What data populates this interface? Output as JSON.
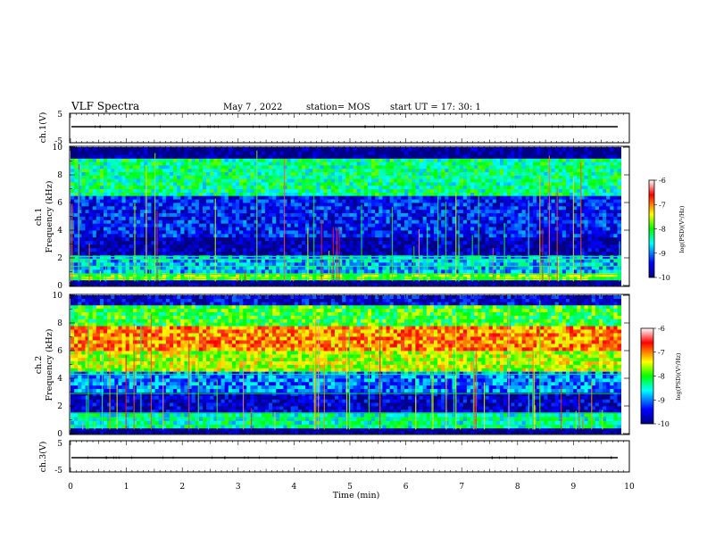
{
  "header": {
    "title": "VLF Spectra",
    "date": "May 7 , 2022",
    "station": "station= MOS",
    "start": "start  UT =   17: 30: 1"
  },
  "colors": {
    "colormap": [
      "#000080",
      "#0000ff",
      "#00ffff",
      "#00ff00",
      "#ffff00",
      "#ff0000",
      "#ffffff"
    ],
    "waveform_line": "#000000",
    "frame": "#000000"
  },
  "chart_data": [
    {
      "type": "line",
      "panel": "ch1-waveform",
      "ylabel": "ch.1(V)",
      "ylim": [
        -5,
        5
      ],
      "yticks": [
        "5",
        "-5"
      ],
      "xlim": [
        0,
        10
      ],
      "series": [
        {
          "values": [
            0,
            0
          ]
        }
      ]
    },
    {
      "type": "heatmap",
      "panel": "ch1-spectrogram",
      "ylabel": "ch.1\nFrequency (kHz)",
      "ylabel_line1": "ch.1",
      "ylabel_line2": "Frequency (kHz)",
      "xlim": [
        0,
        9.85
      ],
      "ylim": [
        0,
        10
      ],
      "yticks": [
        "0",
        "2",
        "4",
        "6",
        "8",
        "10"
      ],
      "colorbar": {
        "label": "log(PSD)(V²/Hz)",
        "ticks": [
          "-6",
          "-7",
          "-8",
          "-9",
          "-10"
        ],
        "range": [
          -10,
          -6
        ]
      },
      "bands_khz": [
        [
          0,
          0.4,
          -10
        ],
        [
          0.4,
          0.9,
          -7.8
        ],
        [
          0.9,
          2.2,
          -8.8
        ],
        [
          2.2,
          3.5,
          -9.8
        ],
        [
          3.5,
          6.5,
          -9.4
        ],
        [
          6.5,
          9.2,
          -8.3
        ],
        [
          9.2,
          10,
          -10
        ]
      ]
    },
    {
      "type": "heatmap",
      "panel": "ch2-spectrogram",
      "ylabel_line1": "ch.2",
      "ylabel_line2": "Frequency (kHz)",
      "xlim": [
        0,
        9.85
      ],
      "ylim": [
        0,
        10
      ],
      "yticks": [
        "0",
        "2",
        "4",
        "6",
        "8",
        "10"
      ],
      "colorbar": {
        "label": "log(PSD)(V²/Hz)",
        "ticks": [
          "-6",
          "-7",
          "-8",
          "-9",
          "-10"
        ],
        "range": [
          -10,
          -6
        ]
      },
      "bands_khz": [
        [
          0,
          0.4,
          -10
        ],
        [
          0.4,
          1.5,
          -8.4
        ],
        [
          1.5,
          3.0,
          -9.7
        ],
        [
          3.0,
          4.5,
          -9.0
        ],
        [
          4.5,
          6.0,
          -7.6
        ],
        [
          6.0,
          7.8,
          -7.0
        ],
        [
          7.8,
          9.3,
          -8.0
        ],
        [
          9.3,
          10,
          -9.6
        ]
      ]
    },
    {
      "type": "line",
      "panel": "ch3-waveform",
      "ylabel": "ch.3(V)",
      "ylim": [
        -5,
        5
      ],
      "yticks": [
        "5",
        "-5"
      ],
      "xlim": [
        0,
        10
      ],
      "xlabel": "Time  (min)",
      "xticks": [
        "0",
        "1",
        "2",
        "3",
        "4",
        "5",
        "6",
        "7",
        "8",
        "9",
        "10"
      ],
      "series": [
        {
          "values": [
            0,
            0
          ]
        }
      ]
    }
  ]
}
